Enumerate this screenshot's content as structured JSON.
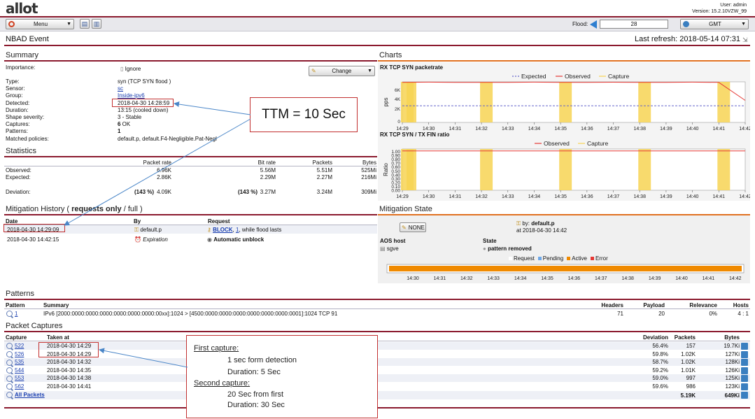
{
  "header": {
    "logo": "allot",
    "user_label": "User: admin",
    "version": "Version: 15.2.10VZW_99"
  },
  "toolbar": {
    "menu_label": "Menu",
    "flood_label": "Flood:",
    "flood_value": "28",
    "timezone": "GMT"
  },
  "page": {
    "title": "NBAD Event",
    "last_refresh": "Last refresh: 2018-05-14 07:31"
  },
  "summary": {
    "title": "Summary",
    "importance_label": "Importance:",
    "importance_value": "Ignore",
    "change_button": "Change",
    "fields": [
      {
        "label": "Type:",
        "value": "syn (TCP SYN flood )"
      },
      {
        "label": "Sensor:",
        "value": "sc",
        "link": true
      },
      {
        "label": "Group:",
        "value": "Inside-ipv6",
        "link": true
      },
      {
        "label": "Detected:",
        "value": "2018-04-30 14:28:59"
      },
      {
        "label": "Duration:",
        "value": "13:15 (cooled down)"
      },
      {
        "label": "Shape severity:",
        "value": "3 - Stable"
      },
      {
        "label": "Captures:",
        "value_bold": "6",
        "value": " OK"
      },
      {
        "label": "Patterns:",
        "value_bold": "1",
        "value": ""
      },
      {
        "label": "Matched policies:",
        "value": "default.p, default.F4-Negligible.Pat-Negl"
      }
    ]
  },
  "statistics": {
    "title": "Statistics",
    "headers": [
      "Packet rate",
      "Bit rate",
      "Packets",
      "Bytes"
    ],
    "rows": [
      {
        "label": "Observed:",
        "pkt_rate": "6.96K",
        "bit_rate": "5.56M",
        "packets": "5.51M",
        "bytes": "525Mi"
      },
      {
        "label": "Expected:",
        "pkt_rate": "2.86K",
        "bit_rate": "2.29M",
        "packets": "2.27M",
        "bytes": "216Mi"
      },
      {
        "label": "Deviation:",
        "pkt_pct": "(143 %)",
        "pkt_rate": "4.09K",
        "bit_pct": "(143 %)",
        "bit_rate": "3.27M",
        "packets": "3.24M",
        "bytes": "309Mi"
      }
    ]
  },
  "mitigation_history": {
    "title_prefix": "Mitigation History ( ",
    "title_bold": "requests only",
    "title_sep": " / ",
    "title_full": "full",
    "title_suffix": " )",
    "headers": [
      "Date",
      "By",
      "Request"
    ],
    "rows": [
      {
        "date": "2018-04-30 14:29:09",
        "by": "default.p",
        "req_link": "BLOCK",
        "req_num": "1",
        "req_rest": ", while flood lasts"
      },
      {
        "date": "2018-04-30 14:42:15",
        "by": "Expiration",
        "req_bold": "Automatic unblock"
      }
    ]
  },
  "charts": {
    "title": "Charts",
    "chart1": {
      "title": "RX TCP SYN packetrate",
      "ylabel": "pps",
      "legend": [
        "Expected",
        "Observed",
        "Capture"
      ],
      "yticks": [
        "6K",
        "4K",
        "2K",
        "0"
      ],
      "xticks": [
        "14:29",
        "14:30",
        "14:31",
        "14:32",
        "14:33",
        "14:34",
        "14:35",
        "14:36",
        "14:37",
        "14:38",
        "14:39",
        "14:40",
        "14:41",
        "14:42"
      ]
    },
    "chart2": {
      "title": "RX TCP SYN / TX FIN ratio",
      "ylabel": "Ratio",
      "legend": [
        "Observed",
        "Capture"
      ],
      "yticks": [
        "1.00",
        "0.90",
        "0.80",
        "0.70",
        "0.60",
        "0.50",
        "0.40",
        "0.30",
        "0.20",
        "0.10",
        "0.00"
      ],
      "xticks": [
        "14:29",
        "14:30",
        "14:31",
        "14:32",
        "14:33",
        "14:34",
        "14:35",
        "14:36",
        "14:37",
        "14:38",
        "14:39",
        "14:40",
        "14:41",
        "14:42"
      ]
    },
    "colors": {
      "expected": "#6666cc",
      "observed": "#e53935",
      "capture": "#f7d354"
    }
  },
  "chart_data": [
    {
      "type": "line",
      "title": "RX TCP SYN packetrate",
      "ylabel": "pps",
      "x": [
        "14:29",
        "14:30",
        "14:31",
        "14:32",
        "14:33",
        "14:34",
        "14:35",
        "14:36",
        "14:37",
        "14:38",
        "14:39",
        "14:40",
        "14:41",
        "14:42"
      ],
      "ylim": [
        0,
        7000
      ],
      "series": [
        {
          "name": "Expected",
          "values": [
            2860,
            2860,
            2860,
            2860,
            2860,
            2860,
            2860,
            2860,
            2860,
            2860,
            2860,
            2860,
            2860,
            2860
          ]
        },
        {
          "name": "Observed",
          "values": [
            6900,
            6950,
            6900,
            6920,
            6900,
            6950,
            6900,
            6920,
            6940,
            6900,
            6920,
            6950,
            6900,
            3800
          ]
        }
      ],
      "captures": [
        "14:29",
        "14:29",
        "14:32",
        "14:35",
        "14:38",
        "14:41"
      ],
      "legend": "top"
    },
    {
      "type": "line",
      "title": "RX TCP SYN / TX FIN ratio",
      "ylabel": "Ratio",
      "x": [
        "14:29",
        "14:30",
        "14:31",
        "14:32",
        "14:33",
        "14:34",
        "14:35",
        "14:36",
        "14:37",
        "14:38",
        "14:39",
        "14:40",
        "14:41",
        "14:42"
      ],
      "ylim": [
        0,
        1.05
      ],
      "series": [
        {
          "name": "Observed",
          "values": [
            1,
            1,
            1,
            1,
            1,
            1,
            1,
            1,
            1,
            1,
            1,
            1,
            1,
            1
          ]
        }
      ],
      "captures": [
        "14:29",
        "14:29",
        "14:32",
        "14:35",
        "14:38",
        "14:41"
      ],
      "legend": "top"
    }
  ],
  "mitigation_state": {
    "title": "Mitigation State",
    "none_button": "NONE",
    "by_label": "by:",
    "by_value": "default.p",
    "at_value": "at 2018-04-30 14:42",
    "aos_header": "AOS host",
    "state_header": "State",
    "host": "sgve",
    "state": "pattern removed",
    "legend": [
      "Request",
      "Pending",
      "Active",
      "Error"
    ],
    "legend_colors": [
      "#ffffff",
      "#6ea8e8",
      "#f08a00",
      "#e53935"
    ],
    "xticks": [
      "14:30",
      "14:31",
      "14:32",
      "14:33",
      "14:34",
      "14:35",
      "14:36",
      "14:37",
      "14:38",
      "14:39",
      "14:40",
      "14:41",
      "14:42"
    ]
  },
  "patterns": {
    "title": "Patterns",
    "headers": [
      "Pattern",
      "Summary",
      "Headers",
      "Payload",
      "Relevance",
      "Hosts"
    ],
    "rows": [
      {
        "pattern": "1",
        "summary": "IPv6 [2000:0000:0000:0000:0000:0000:0000:00xx]:1024 > [4500:0000:0000:0000:0000:0000:0000:0001]:1024 TCP 91",
        "headers": "71",
        "payload": "20",
        "relevance": "0%",
        "hosts": "4 : 1"
      }
    ]
  },
  "captures": {
    "title": "Packet Captures",
    "headers": [
      "Capture",
      "Taken at",
      "Deviation",
      "Packets",
      "Bytes"
    ],
    "rows": [
      {
        "id": "522",
        "taken": "2018-04-30 14:29",
        "deviation": "56.4%",
        "packets": "157",
        "bytes": "19.7Ki"
      },
      {
        "id": "526",
        "taken": "2018-04-30 14:29",
        "deviation": "59.8%",
        "packets": "1.02K",
        "bytes": "127Ki"
      },
      {
        "id": "535",
        "taken": "2018-04-30 14:32",
        "deviation": "58.7%",
        "packets": "1.02K",
        "bytes": "128Ki"
      },
      {
        "id": "544",
        "taken": "2018-04-30 14:35",
        "deviation": "59.2%",
        "packets": "1.01K",
        "bytes": "126Ki"
      },
      {
        "id": "553",
        "taken": "2018-04-30 14:38",
        "deviation": "59.0%",
        "packets": "997",
        "bytes": "125Ki"
      },
      {
        "id": "562",
        "taken": "2018-04-30 14:41",
        "deviation": "59.6%",
        "packets": "986",
        "bytes": "123Ki"
      }
    ],
    "all_label": "All Packets",
    "total_packets": "5.19K",
    "total_bytes": "649Ki"
  },
  "annotations": {
    "ttm": "TTM = 10 Sec",
    "first_capture": "First capture:",
    "first_l1": "1 sec form detection",
    "first_l2": "Duration: 5 Sec",
    "second_capture": "Second capture:",
    "second_l1": "20 Sec from first",
    "second_l2": "Duration: 30 Sec"
  }
}
